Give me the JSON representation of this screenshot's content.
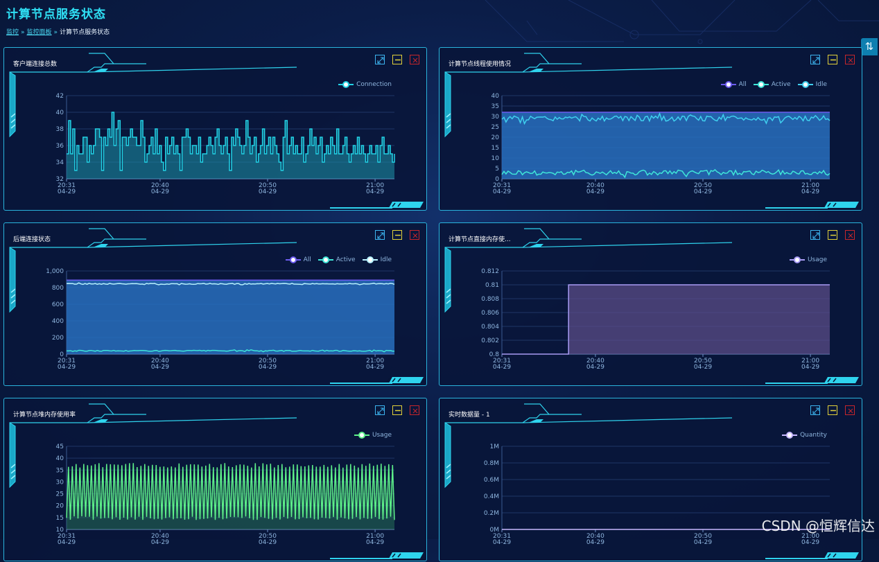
{
  "page": {
    "title": "计算节点服务状态",
    "breadcrumb": [
      {
        "label": "监控",
        "link": true
      },
      {
        "label": "监控面板",
        "link": true
      },
      {
        "label": "计算节点服务状态",
        "link": false
      }
    ],
    "breadcrumb_sep": "»",
    "side_tab_icon": "⇅",
    "watermark": "CSDN @恒辉信达"
  },
  "colors": {
    "accent": "#2fe0f5",
    "panel_border": "#2ab4dd",
    "expand": "#3db5f0",
    "minimize": "#e3d23a",
    "close": "#c8262b"
  },
  "panels": [
    {
      "title": "客户端连接总数",
      "icons": [
        "expand-icon",
        "minimize-icon",
        "close-icon"
      ],
      "chart_data": {
        "type": "area",
        "x_ticks": [
          [
            "20:31",
            "04-29"
          ],
          [
            "20:40",
            "04-29"
          ],
          [
            "20:50",
            "04-29"
          ],
          [
            "21:00",
            "04-29"
          ]
        ],
        "x_range": [
          0,
          30.5
        ],
        "x_tick_pos": [
          0,
          8.7,
          18.7,
          28.7
        ],
        "y_ticks": [
          "32",
          "34",
          "36",
          "38",
          "40",
          "42"
        ],
        "ylim": [
          32,
          42
        ],
        "legend": [
          "Connection"
        ],
        "series": [
          {
            "name": "Connection",
            "color": "#22d3e6",
            "fill": "rgba(30,150,170,0.55)",
            "values": [
              35,
              39,
              35,
              38,
              33,
              36,
              35,
              35,
              37,
              37,
              34,
              36,
              35,
              36,
              38,
              38,
              37,
              33,
              37,
              36,
              38,
              37,
              40,
              36,
              38,
              39,
              33,
              37,
              37,
              36,
              37,
              38,
              37,
              37,
              36,
              36,
              39,
              37,
              34,
              35,
              36,
              37,
              35,
              38,
              35,
              36,
              34,
              33,
              37,
              35,
              36,
              37,
              35,
              36,
              35,
              33,
              37,
              37,
              38,
              37,
              35,
              36,
              36,
              35,
              37,
              34,
              35,
              35,
              36,
              37,
              36,
              35,
              37,
              38,
              36,
              35,
              36,
              37,
              35,
              33,
              37,
              36,
              38,
              37,
              36,
              35,
              36,
              39,
              37,
              35,
              36,
              37,
              34,
              35,
              36,
              38,
              35,
              36,
              37,
              35,
              37,
              36,
              35,
              34,
              33,
              37,
              39,
              35,
              36,
              37,
              35,
              36,
              35,
              35,
              37,
              34,
              35,
              36,
              38,
              36,
              37,
              35,
              36,
              37,
              34,
              35,
              36,
              35,
              37,
              36,
              35,
              38,
              35,
              35,
              36,
              37,
              35,
              34,
              35,
              36,
              35,
              37,
              35,
              36,
              35,
              34,
              35,
              36,
              35,
              35,
              36,
              34,
              36,
              37,
              35,
              35,
              36,
              35,
              34,
              35
            ]
          }
        ]
      }
    },
    {
      "title": "计算节点线程使用情况",
      "icons": [
        "expand-icon",
        "minimize-icon",
        "close-icon"
      ],
      "chart_data": {
        "type": "area",
        "x_ticks": [
          [
            "20:31",
            "04-29"
          ],
          [
            "20:40",
            "04-29"
          ],
          [
            "20:50",
            "04-29"
          ],
          [
            "21:00",
            "04-29"
          ]
        ],
        "x_range": [
          0,
          30.5
        ],
        "x_tick_pos": [
          0,
          8.7,
          18.7,
          28.7
        ],
        "y_ticks": [
          "0",
          "5",
          "10",
          "15",
          "20",
          "25",
          "30",
          "35",
          "40"
        ],
        "ylim": [
          0,
          40
        ],
        "legend": [
          "All",
          "Active",
          "Idle"
        ],
        "series": [
          {
            "name": "All",
            "color": "#6d5cf0",
            "fill": "rgba(40,110,190,0.85)",
            "const": 32
          },
          {
            "name": "Active",
            "color": "#3fe6d8",
            "fill": "none",
            "noise": {
              "base": 3,
              "amp": 2.5
            }
          },
          {
            "name": "Idle",
            "color": "#3fd0ef",
            "fill": "none",
            "noise": {
              "base": 29,
              "amp": 2.5
            }
          }
        ]
      }
    },
    {
      "title": "后端连接状态",
      "icons": [
        "expand-icon",
        "minimize-icon",
        "close-icon"
      ],
      "chart_data": {
        "type": "area",
        "x_ticks": [
          [
            "20:31",
            "04-29"
          ],
          [
            "20:40",
            "04-29"
          ],
          [
            "20:50",
            "04-29"
          ],
          [
            "21:00",
            "04-29"
          ]
        ],
        "x_range": [
          0,
          30.5
        ],
        "x_tick_pos": [
          0,
          8.7,
          18.7,
          28.7
        ],
        "y_ticks": [
          "0",
          "200",
          "400",
          "600",
          "800",
          "1,000"
        ],
        "ylim": [
          0,
          1000
        ],
        "legend": [
          "All",
          "Active",
          "Idle"
        ],
        "series": [
          {
            "name": "All",
            "color": "#6d5cf0",
            "fill": "rgba(40,110,190,0.85)",
            "const": 890
          },
          {
            "name": "Active",
            "color": "#3fe6d8",
            "fill": "none",
            "noise": {
              "base": 40,
              "amp": 12
            }
          },
          {
            "name": "Idle",
            "color": "#b8f2ff",
            "fill": "none",
            "noise": {
              "base": 845,
              "amp": 12
            }
          }
        ]
      }
    },
    {
      "title": "计算节点直接内存使...",
      "icons": [
        "expand-icon",
        "minimize-icon",
        "close-icon"
      ],
      "chart_data": {
        "type": "area",
        "x_ticks": [
          [
            "20:31",
            "04-29"
          ],
          [
            "20:40",
            "04-29"
          ],
          [
            "20:50",
            "04-29"
          ],
          [
            "21:00",
            "04-29"
          ]
        ],
        "x_range": [
          0,
          30.5
        ],
        "x_tick_pos": [
          0,
          8.7,
          18.7,
          28.7
        ],
        "y_ticks": [
          "0.8",
          "0.802",
          "0.804",
          "0.806",
          "0.808",
          "0.81",
          "0.812"
        ],
        "ylim": [
          0.8,
          0.812
        ],
        "legend": [
          "Usage"
        ],
        "series": [
          {
            "name": "Usage",
            "color": "#a99cf5",
            "fill": "rgba(95,80,140,0.7)",
            "step": {
              "x": 6.2,
              "before": 0.8,
              "after": 0.81
            }
          }
        ]
      }
    },
    {
      "title": "计算节点堆内存使用率",
      "icons": [
        "expand-icon",
        "minimize-icon",
        "close-icon"
      ],
      "chart_data": {
        "type": "area",
        "x_ticks": [
          [
            "20:31",
            "04-29"
          ],
          [
            "20:40",
            "04-29"
          ],
          [
            "20:50",
            "04-29"
          ],
          [
            "21:00",
            "04-29"
          ]
        ],
        "x_range": [
          0,
          30.5
        ],
        "x_tick_pos": [
          0,
          8.7,
          18.7,
          28.7
        ],
        "y_ticks": [
          "10",
          "15",
          "20",
          "25",
          "30",
          "35",
          "40",
          "45"
        ],
        "ylim": [
          10,
          45
        ],
        "legend": [
          "Usage"
        ],
        "series": [
          {
            "name": "Usage",
            "color": "#5ef08a",
            "fill": "rgba(40,120,90,0.5)",
            "saw": {
              "low": 14,
              "high": 38,
              "count": 86
            }
          }
        ]
      }
    },
    {
      "title": "实时数据量 - 1",
      "icons": [
        "expand-icon",
        "minimize-icon",
        "close-icon"
      ],
      "chart_data": {
        "type": "line",
        "x_ticks": [
          [
            "20:31",
            "04-29"
          ],
          [
            "20:40",
            "04-29"
          ],
          [
            "20:50",
            "04-29"
          ],
          [
            "21:00",
            "04-29"
          ]
        ],
        "x_range": [
          0,
          30.5
        ],
        "x_tick_pos": [
          0,
          8.7,
          18.7,
          28.7
        ],
        "y_ticks": [
          "0M",
          "0.2M",
          "0.4M",
          "0.6M",
          "0.8M",
          "1M"
        ],
        "ylim": [
          0,
          1
        ],
        "legend": [
          "Quantity"
        ],
        "series": [
          {
            "name": "Quantity",
            "color": "#c8b8ff",
            "fill": "none",
            "const": 0
          }
        ]
      }
    }
  ]
}
